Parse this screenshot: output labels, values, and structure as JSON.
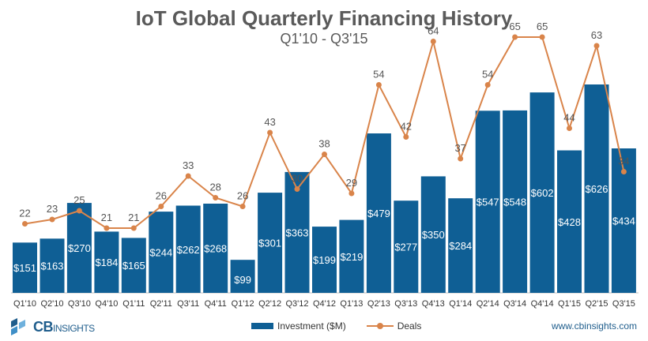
{
  "chart_data": {
    "type": "bar",
    "title": "IoT Global Quarterly Financing History",
    "subtitle": "Q1'10 - Q3'15",
    "categories": [
      "Q1'10",
      "Q2'10",
      "Q3'10",
      "Q4'10",
      "Q1'11",
      "Q2'11",
      "Q3'11",
      "Q4'11",
      "Q1'12",
      "Q2'12",
      "Q3'12",
      "Q4'12",
      "Q1'13",
      "Q2'13",
      "Q3'13",
      "Q4'13",
      "Q1'14",
      "Q2'14",
      "Q3'14",
      "Q4'14",
      "Q1'15",
      "Q2'15",
      "Q3'15"
    ],
    "series": [
      {
        "name": "Investment ($M)",
        "type": "bar",
        "color": "#0f5f95",
        "values": [
          151,
          163,
          270,
          184,
          165,
          244,
          262,
          268,
          99,
          301,
          363,
          199,
          219,
          479,
          277,
          350,
          284,
          547,
          548,
          602,
          428,
          626,
          434
        ],
        "labels": [
          "$151",
          "$163",
          "$270",
          "$184",
          "$165",
          "$244",
          "$262",
          "$268",
          "$99",
          "$301",
          "$363",
          "$199",
          "$219",
          "$479",
          "$277",
          "$350",
          "$284",
          "$547",
          "$548",
          "$602",
          "$428",
          "$626",
          "$434"
        ]
      },
      {
        "name": "Deals",
        "type": "line",
        "color": "#d9844a",
        "values": [
          22,
          23,
          25,
          21,
          21,
          26,
          33,
          28,
          26,
          43,
          30,
          38,
          29,
          54,
          42,
          64,
          37,
          54,
          65,
          65,
          44,
          63,
          34
        ]
      }
    ],
    "legend_position": "bottom",
    "grid": false
  },
  "branding": {
    "logo_main": "CB",
    "logo_sub": "INSIGHTS",
    "website": "www.cbinsights.com"
  }
}
